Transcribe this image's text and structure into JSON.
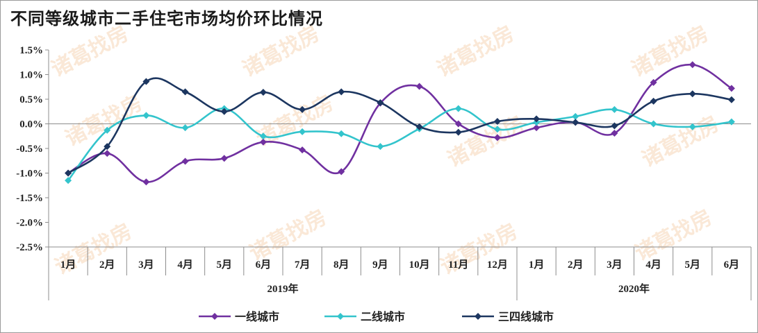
{
  "chart_data": {
    "type": "line",
    "title": "不同等级城市二手住宅市场均价环比情况",
    "categories": [
      "1月",
      "2月",
      "3月",
      "4月",
      "5月",
      "6月",
      "7月",
      "8月",
      "9月",
      "10月",
      "11月",
      "12月",
      "1月",
      "2月",
      "3月",
      "4月",
      "5月",
      "6月"
    ],
    "groups": [
      {
        "label": "2019年",
        "start": 0,
        "end": 11
      },
      {
        "label": "2020年",
        "start": 12,
        "end": 17
      }
    ],
    "yticks": [
      1.5,
      1.0,
      0.5,
      0.0,
      -0.5,
      -1.0,
      -1.5,
      -2.0,
      -2.5
    ],
    "ytick_labels": [
      "1.5%",
      "1.0%",
      "0.5%",
      "0.0%",
      "-0.5%",
      "-1.0%",
      "-1.5%",
      "-2.0%",
      "-2.5%"
    ],
    "ylim": [
      -2.5,
      1.5
    ],
    "series": [
      {
        "name": "一线城市",
        "color": "#7030a0",
        "values": [
          -1.0,
          -0.6,
          -1.18,
          -0.76,
          -0.7,
          -0.37,
          -0.53,
          -0.97,
          0.42,
          0.76,
          0.0,
          -0.28,
          -0.08,
          0.03,
          -0.19,
          0.84,
          1.2,
          0.72
        ]
      },
      {
        "name": "二线城市",
        "color": "#33c4cc",
        "values": [
          -1.15,
          -0.13,
          0.17,
          -0.08,
          0.31,
          -0.25,
          -0.16,
          -0.2,
          -0.46,
          -0.1,
          0.31,
          -0.11,
          0.03,
          0.15,
          0.29,
          0.0,
          -0.06,
          0.04
        ]
      },
      {
        "name": "三四线城市",
        "color": "#1c3660",
        "values": [
          -1.0,
          -0.46,
          0.86,
          0.65,
          0.25,
          0.64,
          0.29,
          0.65,
          0.43,
          -0.06,
          -0.17,
          0.05,
          0.1,
          0.03,
          -0.04,
          0.46,
          0.61,
          0.49
        ]
      }
    ],
    "watermark": "诸葛找房"
  }
}
